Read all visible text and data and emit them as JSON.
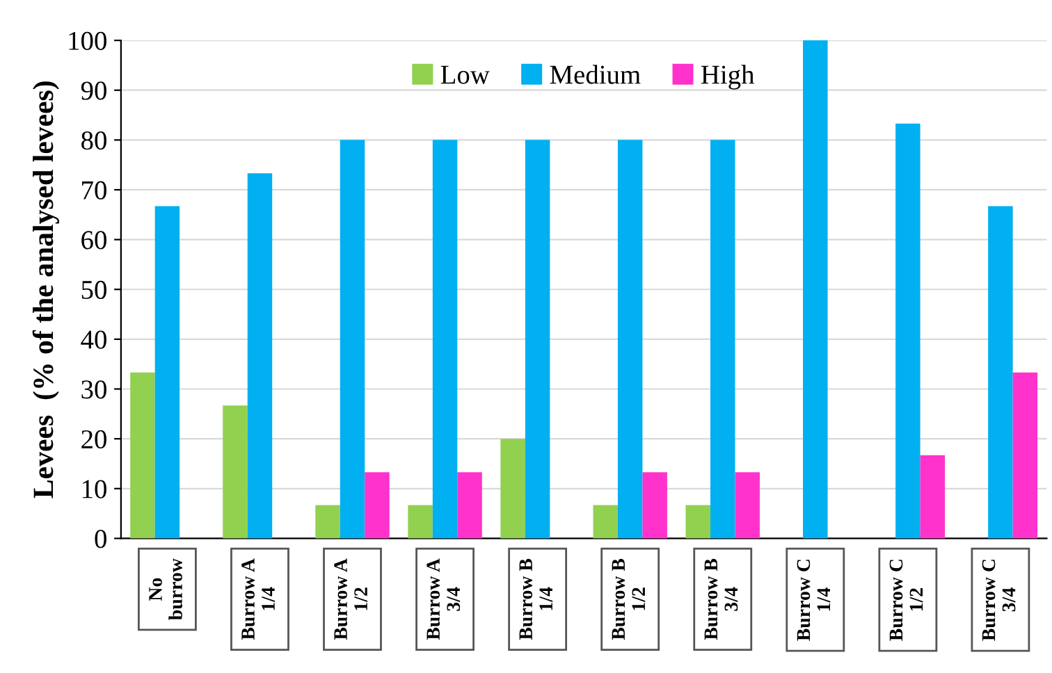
{
  "chart_data": {
    "type": "bar",
    "ylabel": "Levees  (% of the analysed levees)",
    "categories": [
      "No\nburrow",
      "Burrow A\n1/4",
      "Burrow A\n1/2",
      "Burrow A\n3/4",
      "Burrow B\n1/4",
      "Burrow B\n1/2",
      "Burrow B\n3/4",
      "Burrow C\n1/4",
      "Burrow C\n1/2",
      "Burrow C\n3/4"
    ],
    "series": [
      {
        "name": "Low",
        "color": "#92d050",
        "values": [
          33.3,
          26.7,
          6.7,
          6.7,
          20,
          6.7,
          6.7,
          0,
          0,
          0
        ]
      },
      {
        "name": "Medium",
        "color": "#00b0f0",
        "values": [
          66.7,
          73.3,
          80,
          80,
          80,
          80,
          80,
          100,
          83.3,
          66.7
        ]
      },
      {
        "name": "High",
        "color": "#ff33cc",
        "values": [
          0,
          0,
          13.3,
          13.3,
          0,
          13.3,
          13.3,
          0,
          16.7,
          33.3
        ]
      }
    ],
    "ylim": [
      0,
      100
    ],
    "yticks": [
      0,
      10,
      20,
      30,
      40,
      50,
      60,
      70,
      80,
      90,
      100
    ],
    "grid": "y",
    "legend": "top"
  }
}
